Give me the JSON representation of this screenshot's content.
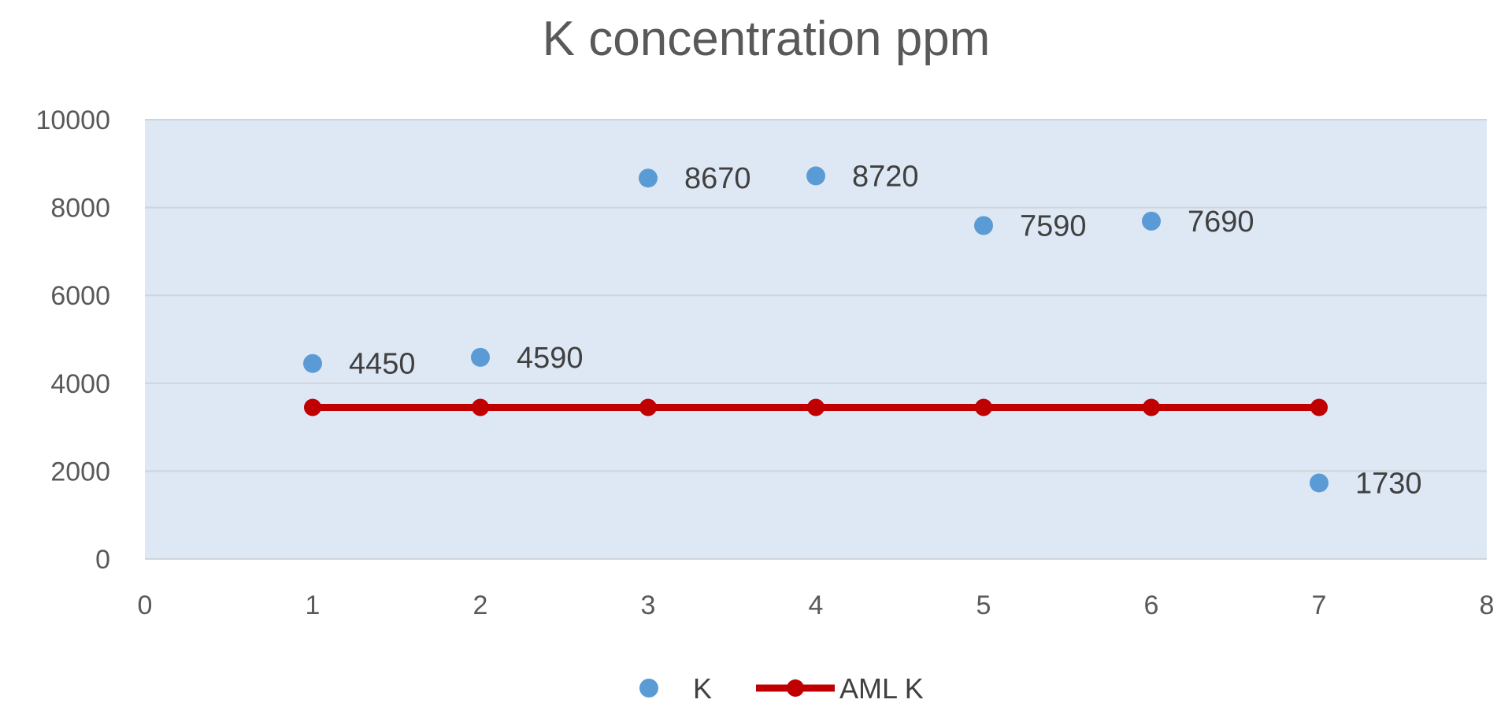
{
  "chart_data": {
    "type": "scatter",
    "title": "K concentration ppm",
    "xlim": [
      0,
      8
    ],
    "ylim": [
      0,
      10000
    ],
    "x_ticks": [
      "0",
      "1",
      "2",
      "3",
      "4",
      "5",
      "6",
      "7",
      "8"
    ],
    "y_ticks": [
      "0",
      "2000",
      "4000",
      "6000",
      "8000",
      "10000"
    ],
    "grid": true,
    "legend_position": "bottom",
    "plot_background": "#dde8f4",
    "series": [
      {
        "name": "K",
        "kind": "scatter",
        "color": "#5b9bd5",
        "x": [
          1,
          2,
          3,
          4,
          5,
          6,
          7
        ],
        "y": [
          4450,
          4590,
          8670,
          8720,
          7590,
          7690,
          1730
        ],
        "labels": [
          "4450",
          "4590",
          "8670",
          "8720",
          "7590",
          "7690",
          "1730"
        ]
      },
      {
        "name": "AML K",
        "kind": "line",
        "color": "#c00000",
        "x": [
          1,
          2,
          3,
          4,
          5,
          6,
          7
        ],
        "y": [
          3450,
          3450,
          3450,
          3450,
          3450,
          3450,
          3450
        ]
      }
    ]
  }
}
